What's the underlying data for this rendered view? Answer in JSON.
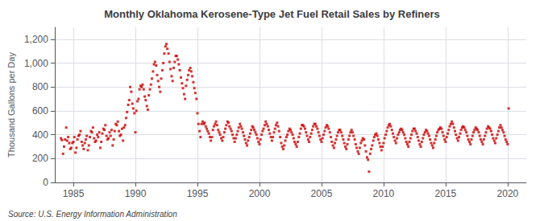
{
  "chart_data": {
    "type": "scatter",
    "title": "Monthly Oklahoma Kerosene-Type Jet Fuel Retail Sales by Refiners",
    "ylabel": "Thousand Gallons per Day",
    "source": "Source: U.S. Energy Information Administration",
    "color": "#cc0000",
    "marker": "square",
    "grid": true,
    "xlim": [
      1983.5,
      2021.5
    ],
    "xticks": [
      1985,
      1990,
      1995,
      2000,
      2005,
      2010,
      2015,
      2020
    ],
    "ylim": [
      0,
      1300
    ],
    "yticks": [
      0,
      200,
      400,
      600,
      800,
      {
        "value": 1000,
        "label": "1,000"
      },
      {
        "value": 1200,
        "label": "1,200"
      }
    ],
    "x": [
      1984.0,
      1984.08,
      1984.17,
      1984.25,
      1984.33,
      1984.42,
      1984.5,
      1984.58,
      1984.67,
      1984.75,
      1984.83,
      1984.92,
      1985.0,
      1985.08,
      1985.17,
      1985.25,
      1985.33,
      1985.42,
      1985.5,
      1985.58,
      1985.67,
      1985.75,
      1985.83,
      1985.92,
      1986.0,
      1986.08,
      1986.17,
      1986.25,
      1986.33,
      1986.42,
      1986.5,
      1986.58,
      1986.67,
      1986.75,
      1986.83,
      1986.92,
      1987.0,
      1987.08,
      1987.17,
      1987.25,
      1987.33,
      1987.42,
      1987.5,
      1987.58,
      1987.67,
      1987.75,
      1987.83,
      1987.92,
      1988.0,
      1988.08,
      1988.17,
      1988.25,
      1988.33,
      1988.42,
      1988.5,
      1988.58,
      1988.67,
      1988.75,
      1988.83,
      1988.92,
      1989.0,
      1989.08,
      1989.17,
      1989.25,
      1989.33,
      1989.42,
      1989.5,
      1989.58,
      1989.67,
      1989.75,
      1989.83,
      1989.92,
      1990.0,
      1990.08,
      1990.17,
      1990.25,
      1990.33,
      1990.42,
      1990.5,
      1990.58,
      1990.67,
      1990.75,
      1990.83,
      1990.92,
      1991.0,
      1991.08,
      1991.17,
      1991.25,
      1991.33,
      1991.42,
      1991.5,
      1991.58,
      1991.67,
      1991.75,
      1991.83,
      1991.92,
      1992.0,
      1992.08,
      1992.17,
      1992.25,
      1992.33,
      1992.42,
      1992.5,
      1992.58,
      1992.67,
      1992.75,
      1992.83,
      1992.92,
      1993.0,
      1993.08,
      1993.17,
      1993.25,
      1993.33,
      1993.42,
      1993.5,
      1993.58,
      1993.67,
      1993.75,
      1993.83,
      1993.92,
      1994.0,
      1994.08,
      1994.17,
      1994.25,
      1994.33,
      1994.42,
      1994.5,
      1994.58,
      1994.67,
      1994.75,
      1994.83,
      1994.92,
      1995.0,
      1995.08,
      1995.17,
      1995.25,
      1995.33,
      1995.42,
      1995.5,
      1995.58,
      1995.67,
      1995.75,
      1995.83,
      1995.92,
      1996.0,
      1996.08,
      1996.17,
      1996.25,
      1996.33,
      1996.42,
      1996.5,
      1996.58,
      1996.67,
      1996.75,
      1996.83,
      1996.92,
      1997.0,
      1997.08,
      1997.17,
      1997.25,
      1997.33,
      1997.42,
      1997.5,
      1997.58,
      1997.67,
      1997.75,
      1997.83,
      1997.92,
      1998.0,
      1998.08,
      1998.17,
      1998.25,
      1998.33,
      1998.42,
      1998.5,
      1998.58,
      1998.67,
      1998.75,
      1998.83,
      1998.92,
      1999.0,
      1999.08,
      1999.17,
      1999.25,
      1999.33,
      1999.42,
      1999.5,
      1999.58,
      1999.67,
      1999.75,
      1999.83,
      1999.92,
      2000.0,
      2000.08,
      2000.17,
      2000.25,
      2000.33,
      2000.42,
      2000.5,
      2000.58,
      2000.67,
      2000.75,
      2000.83,
      2000.92,
      2001.0,
      2001.08,
      2001.17,
      2001.25,
      2001.33,
      2001.42,
      2001.5,
      2001.58,
      2001.67,
      2001.75,
      2001.83,
      2001.92,
      2002.0,
      2002.08,
      2002.17,
      2002.25,
      2002.33,
      2002.42,
      2002.5,
      2002.58,
      2002.67,
      2002.75,
      2002.83,
      2002.92,
      2003.0,
      2003.08,
      2003.17,
      2003.25,
      2003.33,
      2003.42,
      2003.5,
      2003.58,
      2003.67,
      2003.75,
      2003.83,
      2003.92,
      2004.0,
      2004.08,
      2004.17,
      2004.25,
      2004.33,
      2004.42,
      2004.5,
      2004.58,
      2004.67,
      2004.75,
      2004.83,
      2004.92,
      2005.0,
      2005.08,
      2005.17,
      2005.25,
      2005.33,
      2005.42,
      2005.5,
      2005.58,
      2005.67,
      2005.75,
      2005.83,
      2005.92,
      2006.0,
      2006.08,
      2006.17,
      2006.25,
      2006.33,
      2006.42,
      2006.5,
      2006.58,
      2006.67,
      2006.75,
      2006.83,
      2006.92,
      2007.0,
      2007.08,
      2007.17,
      2007.25,
      2007.33,
      2007.42,
      2007.5,
      2007.58,
      2007.67,
      2007.75,
      2007.83,
      2007.92,
      2008.0,
      2008.08,
      2008.17,
      2008.25,
      2008.33,
      2008.42,
      2008.5,
      2008.58,
      2008.67,
      2008.75,
      2008.83,
      2008.92,
      2009.0,
      2009.08,
      2009.17,
      2009.25,
      2009.33,
      2009.42,
      2009.5,
      2009.58,
      2009.67,
      2009.75,
      2009.83,
      2009.92,
      2010.0,
      2010.08,
      2010.17,
      2010.25,
      2010.33,
      2010.42,
      2010.5,
      2010.58,
      2010.67,
      2010.75,
      2010.83,
      2010.92,
      2011.0,
      2011.08,
      2011.17,
      2011.25,
      2011.33,
      2011.42,
      2011.5,
      2011.58,
      2011.67,
      2011.75,
      2011.83,
      2011.92,
      2012.0,
      2012.08,
      2012.17,
      2012.25,
      2012.33,
      2012.42,
      2012.5,
      2012.58,
      2012.67,
      2012.75,
      2012.83,
      2012.92,
      2013.0,
      2013.08,
      2013.17,
      2013.25,
      2013.33,
      2013.42,
      2013.5,
      2013.58,
      2013.67,
      2013.75,
      2013.83,
      2013.92,
      2014.0,
      2014.08,
      2014.17,
      2014.25,
      2014.33,
      2014.42,
      2014.5,
      2014.58,
      2014.67,
      2014.75,
      2014.83,
      2014.92,
      2015.0,
      2015.08,
      2015.17,
      2015.25,
      2015.33,
      2015.42,
      2015.5,
      2015.58,
      2015.67,
      2015.75,
      2015.83,
      2015.92,
      2016.0,
      2016.08,
      2016.17,
      2016.25,
      2016.33,
      2016.42,
      2016.5,
      2016.58,
      2016.67,
      2016.75,
      2016.83,
      2016.92,
      2017.0,
      2017.08,
      2017.17,
      2017.25,
      2017.33,
      2017.42,
      2017.5,
      2017.58,
      2017.67,
      2017.75,
      2017.83,
      2017.92,
      2018.0,
      2018.08,
      2018.17,
      2018.25,
      2018.33,
      2018.42,
      2018.5,
      2018.58,
      2018.67,
      2018.75,
      2018.83,
      2018.92,
      2019.0,
      2019.08,
      2019.17,
      2019.25,
      2019.33,
      2019.42,
      2019.5,
      2019.58,
      2019.67,
      2019.75,
      2019.83,
      2019.92,
      2020.0,
      2020.08
    ],
    "values": [
      370,
      355,
      240,
      300,
      360,
      460,
      350,
      380,
      330,
      280,
      290,
      330,
      340,
      380,
      250,
      290,
      360,
      390,
      400,
      430,
      340,
      310,
      280,
      330,
      360,
      390,
      270,
      310,
      380,
      430,
      420,
      460,
      370,
      340,
      350,
      400,
      380,
      420,
      290,
      340,
      410,
      450,
      440,
      480,
      390,
      360,
      370,
      420,
      390,
      440,
      310,
      360,
      430,
      490,
      480,
      510,
      430,
      390,
      400,
      450,
      350,
      460,
      480,
      540,
      590,
      650,
      690,
      800,
      760,
      660,
      620,
      580,
      420,
      600,
      680,
      700,
      780,
      810,
      800,
      820,
      780,
      720,
      690,
      640,
      610,
      730,
      780,
      820,
      870,
      930,
      990,
      1010,
      980,
      900,
      850,
      800,
      760,
      870,
      940,
      1000,
      1080,
      1140,
      1160,
      1120,
      1080,
      1010,
      950,
      890,
      850,
      960,
      1010,
      1060,
      1060,
      1030,
      990,
      940,
      880,
      830,
      790,
      740,
      700,
      810,
      860,
      900,
      940,
      960,
      930,
      890,
      840,
      790,
      750,
      700,
      580,
      490,
      430,
      380,
      490,
      510,
      490,
      500,
      470,
      450,
      430,
      410,
      380,
      350,
      380,
      440,
      470,
      490,
      510,
      480,
      440,
      420,
      400,
      370,
      350,
      380,
      420,
      450,
      480,
      510,
      500,
      470,
      450,
      430,
      400,
      370,
      340,
      370,
      400,
      430,
      460,
      490,
      470,
      450,
      420,
      390,
      360,
      330,
      310,
      350,
      380,
      410,
      440,
      470,
      460,
      440,
      420,
      400,
      370,
      340,
      320,
      360,
      400,
      430,
      450,
      480,
      510,
      490,
      470,
      440,
      410,
      380,
      350,
      380,
      420,
      450,
      480,
      500,
      470,
      430,
      380,
      330,
      300,
      280,
      310,
      350,
      380,
      400,
      430,
      450,
      440,
      420,
      400,
      370,
      340,
      320,
      300,
      340,
      380,
      410,
      450,
      480,
      480,
      470,
      450,
      420,
      390,
      360,
      340,
      380,
      410,
      440,
      470,
      490,
      490,
      470,
      450,
      420,
      390,
      360,
      340,
      370,
      400,
      430,
      460,
      480,
      470,
      450,
      420,
      380,
      340,
      310,
      290,
      330,
      360,
      390,
      420,
      440,
      440,
      420,
      390,
      360,
      330,
      300,
      280,
      320,
      360,
      390,
      420,
      440,
      420,
      390,
      360,
      320,
      290,
      260,
      240,
      290,
      330,
      350,
      370,
      360,
      310,
      260,
      210,
      190,
      90,
      240,
      280,
      310,
      350,
      380,
      400,
      410,
      390,
      360,
      330,
      300,
      270,
      300,
      330,
      370,
      400,
      430,
      460,
      480,
      490,
      470,
      440,
      410,
      380,
      350,
      330,
      370,
      400,
      420,
      440,
      450,
      440,
      420,
      400,
      370,
      340,
      320,
      300,
      340,
      370,
      400,
      430,
      450,
      450,
      430,
      410,
      380,
      350,
      320,
      300,
      340,
      370,
      400,
      420,
      440,
      430,
      410,
      390,
      360,
      330,
      310,
      290,
      330,
      360,
      390,
      420,
      440,
      450,
      460,
      450,
      420,
      390,
      360,
      340,
      380,
      410,
      440,
      470,
      490,
      510,
      490,
      460,
      430,
      400,
      370,
      350,
      380,
      410,
      440,
      460,
      470,
      460,
      440,
      420,
      390,
      360,
      340,
      320,
      360,
      390,
      420,
      440,
      460,
      450,
      440,
      420,
      390,
      360,
      340,
      320,
      360,
      390,
      420,
      450,
      470,
      460,
      450,
      430,
      400,
      370,
      350,
      330,
      370,
      400,
      430,
      460,
      480,
      460,
      440,
      420,
      390,
      360,
      340,
      320,
      620
    ]
  }
}
